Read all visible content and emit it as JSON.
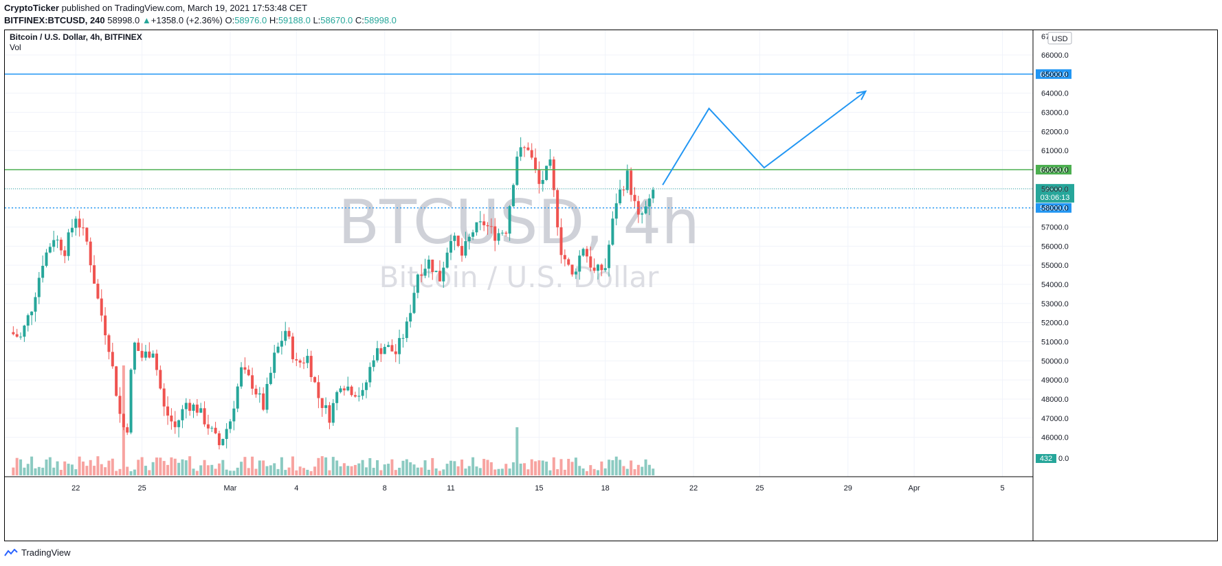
{
  "header": {
    "author": "CryptoTicker",
    "published_text": " published on TradingView.com, March 19, 2021 17:53:48 CET",
    "symbol": "BITFINEX:BTCUSD, 240",
    "last": "58998.0",
    "change": "+1358.0 (+2.36%)",
    "open": "58976.0",
    "high": "59188.0",
    "low": "58670.0",
    "close": "58998.0"
  },
  "legend": {
    "title": "Bitcoin / U.S. Dollar, 4h, BITFINEX",
    "vol_label": "Vol"
  },
  "watermark": {
    "symbol": "BTCUSD, 4h",
    "name": "Bitcoin / U.S. Dollar"
  },
  "currency_label": "USD",
  "footer": {
    "brand": "TradingView"
  },
  "colors": {
    "up": "#26a69a",
    "down": "#ef5350",
    "up_vol": "#8bcac1",
    "down_vol": "#f7a3a0",
    "level_blue": "#2196f3",
    "level_green": "#4caf50",
    "current": "#26a69a"
  },
  "chart_data": {
    "type": "candlestick",
    "interval": "4h",
    "ylim": [
      45000,
      67000
    ],
    "y_ticks": [
      46000,
      47000,
      48000,
      49000,
      50000,
      51000,
      52000,
      53000,
      54000,
      55000,
      56000,
      57000,
      58000,
      59000,
      60000,
      61000,
      62000,
      63000,
      64000,
      65000,
      66000
    ],
    "y_tick_labels": [
      "46000.0",
      "47000.0",
      "48000.0",
      "49000.0",
      "50000.0",
      "51000.0",
      "52000.0",
      "53000.0",
      "54000.0",
      "55000.0",
      "56000.0",
      "57000.0",
      "58000.0",
      "59000.0",
      "60000.0",
      "61000.0",
      "62000.0",
      "63000.0",
      "64000.0",
      "65000.0",
      "66000.0"
    ],
    "x_ticks": [
      {
        "label": "22",
        "day": 3
      },
      {
        "label": "25",
        "day": 6
      },
      {
        "label": "Mar",
        "day": 10
      },
      {
        "label": "4",
        "day": 13
      },
      {
        "label": "8",
        "day": 17
      },
      {
        "label": "11",
        "day": 20
      },
      {
        "label": "15",
        "day": 24
      },
      {
        "label": "18",
        "day": 27
      },
      {
        "label": "22",
        "day": 31
      },
      {
        "label": "25",
        "day": 34
      },
      {
        "label": "29",
        "day": 38
      },
      {
        "label": "Apr",
        "day": 41
      },
      {
        "label": "5",
        "day": 45
      }
    ],
    "price_path": [
      [
        0,
        51500
      ],
      [
        0.5,
        51200
      ],
      [
        1,
        52800
      ],
      [
        1.5,
        55200
      ],
      [
        2,
        56500
      ],
      [
        2.5,
        55800
      ],
      [
        3,
        57600
      ],
      [
        3.5,
        56200
      ],
      [
        4,
        53200
      ],
      [
        4.5,
        50800
      ],
      [
        5,
        47200
      ],
      [
        5.3,
        46000
      ],
      [
        5.6,
        51000
      ],
      [
        6,
        50200
      ],
      [
        6.5,
        50600
      ],
      [
        7,
        47500
      ],
      [
        7.5,
        46500
      ],
      [
        8,
        47800
      ],
      [
        8.5,
        47500
      ],
      [
        9,
        46600
      ],
      [
        9.5,
        45600
      ],
      [
        10,
        46900
      ],
      [
        10.5,
        49500
      ],
      [
        11,
        48800
      ],
      [
        11.5,
        47600
      ],
      [
        12,
        50200
      ],
      [
        12.5,
        51600
      ],
      [
        13,
        49800
      ],
      [
        13.5,
        50200
      ],
      [
        14,
        48100
      ],
      [
        14.5,
        47100
      ],
      [
        15,
        48900
      ],
      [
        15.5,
        48500
      ],
      [
        16,
        48200
      ],
      [
        16.5,
        50300
      ],
      [
        17,
        50800
      ],
      [
        17.5,
        50400
      ],
      [
        18,
        51800
      ],
      [
        18.5,
        54600
      ],
      [
        19,
        55200
      ],
      [
        19.5,
        54300
      ],
      [
        20,
        56600
      ],
      [
        20.5,
        55500
      ],
      [
        21,
        56800
      ],
      [
        21.5,
        57200
      ],
      [
        22,
        56600
      ],
      [
        22.5,
        56900
      ],
      [
        23,
        60800
      ],
      [
        23.5,
        61200
      ],
      [
        24,
        59200
      ],
      [
        24.5,
        60200
      ],
      [
        25,
        55800
      ],
      [
        25.5,
        54400
      ],
      [
        26,
        56000
      ],
      [
        26.5,
        54600
      ],
      [
        27,
        54900
      ],
      [
        27.5,
        58400
      ],
      [
        28,
        59700
      ],
      [
        28.5,
        57400
      ],
      [
        29,
        58200
      ],
      [
        29.2,
        58998
      ]
    ],
    "volume_profile": "varying, low relative to price; spike near day 23 (approx. 2.4x average)",
    "horizontal_levels": [
      {
        "price": 65000,
        "label": "65000.0",
        "color": "#2196f3",
        "style": "solid"
      },
      {
        "price": 60000,
        "label": "60000.0",
        "color": "#4caf50",
        "style": "solid"
      },
      {
        "price": 58000,
        "label": "58000.0",
        "color": "#2196f3",
        "style": "dotted"
      }
    ],
    "current_price": {
      "price": 58998,
      "label": "58998.0",
      "countdown": "03:06:13"
    },
    "volume_last_label": "432",
    "volume_axis_label": "0.0",
    "projection_path": [
      [
        29.6,
        59200
      ],
      [
        31.7,
        63200
      ],
      [
        34.2,
        60100
      ],
      [
        38.8,
        64100
      ]
    ],
    "axis_top_partial_label": "67"
  }
}
